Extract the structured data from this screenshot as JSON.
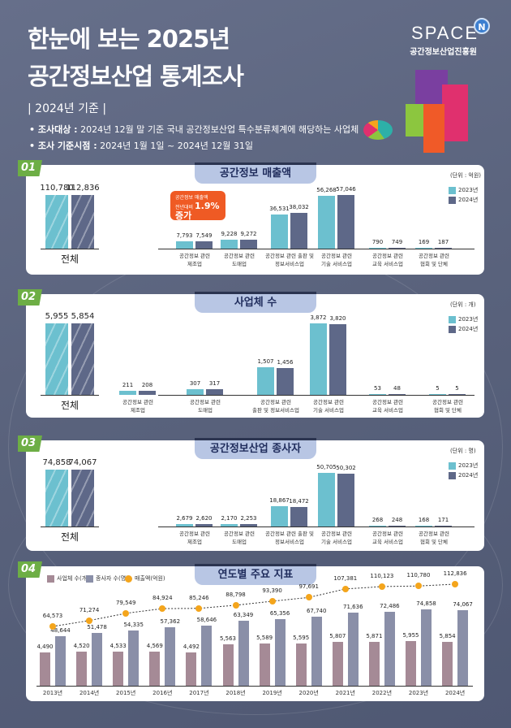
{
  "header": {
    "title_line1": "한눈에 보는 2025년",
    "title_line2": "공간정보산업 통계조사",
    "basis": "| 2024년 기준 |",
    "bullets": [
      {
        "label": "• 조사대상 :",
        "text": "2024년 12월 말 기준 국내 공간정보산업 특수분류체계에 해당하는 사업체"
      },
      {
        "label": "• 조사 기준시점 :",
        "text": "2024년 1월 1일 ~ 2024년 12월 31일"
      }
    ],
    "logo": "SPACE",
    "logo_badge": "N",
    "logo_org": "공간정보산업진흥원"
  },
  "colors": {
    "y2023": "#6cc0cf",
    "y2024": "#5e6888",
    "business": "#a58a96",
    "employees": "#8a8fa8",
    "sales": "#f4a51c",
    "badge": "#6dae45",
    "callout": "#ef5a24"
  },
  "legend": [
    "2023년",
    "2024년"
  ],
  "callout": {
    "line1": "공간정보 매출액",
    "line2": "전년대비",
    "highlight": "1.9% 증가"
  },
  "chart_data": [
    {
      "type": "bar",
      "num": "01",
      "title": "공간정보 매출액",
      "unit": "(단위 : 억원)",
      "total_label": "전체",
      "total_values": [
        "110,780",
        "112,836"
      ],
      "series": [
        {
          "name": "2023년"
        },
        {
          "name": "2024년"
        }
      ],
      "categories": [
        {
          "label": "공간정보 관련\n제조업",
          "values": [
            7793,
            7549
          ],
          "text": [
            "7,793",
            "7,549"
          ]
        },
        {
          "label": "공간정보 관련\n도매업",
          "values": [
            9228,
            9272
          ],
          "text": [
            "9,228",
            "9,272"
          ]
        },
        {
          "label": "공간정보 관련 출판 및\n정보서비스업",
          "values": [
            36531,
            38032
          ],
          "text": [
            "36,531",
            "38,032"
          ]
        },
        {
          "label": "공간정보 관련\n기술 서비스업",
          "values": [
            56268,
            57046
          ],
          "text": [
            "56,268",
            "57,046"
          ]
        },
        {
          "label": "공간정보 관련\n교육 서비스업",
          "values": [
            790,
            749
          ],
          "text": [
            "790",
            "749"
          ]
        },
        {
          "label": "공간정보 관련\n협회 및 단체",
          "values": [
            169,
            187
          ],
          "text": [
            "169",
            "187"
          ]
        }
      ]
    },
    {
      "type": "bar",
      "num": "02",
      "title": "사업체 수",
      "unit": "(단위 : 개)",
      "total_label": "전체",
      "total_values": [
        "5,955",
        "5,854"
      ],
      "series": [
        {
          "name": "2023년"
        },
        {
          "name": "2024년"
        }
      ],
      "categories": [
        {
          "label": "공간정보 관련\n제조업",
          "values": [
            211,
            208
          ],
          "text": [
            "211",
            "208"
          ]
        },
        {
          "label": "공간정보 관련\n도매업",
          "values": [
            307,
            317
          ],
          "text": [
            "307",
            "317"
          ]
        },
        {
          "label": "공간정보 관련\n출판 및 정보서비스업",
          "values": [
            1507,
            1456
          ],
          "text": [
            "1,507",
            "1,456"
          ]
        },
        {
          "label": "공간정보 관련\n기술 서비스업",
          "values": [
            3872,
            3820
          ],
          "text": [
            "3,872",
            "3,820"
          ]
        },
        {
          "label": "공간정보 관련\n교육 서비스업",
          "values": [
            53,
            48
          ],
          "text": [
            "53",
            "48"
          ]
        },
        {
          "label": "공간정보 관련\n협회 및 단체",
          "values": [
            5,
            5
          ],
          "text": [
            "5",
            "5"
          ]
        }
      ]
    },
    {
      "type": "bar",
      "num": "03",
      "title": "공간정보산업 종사자",
      "unit": "(단위 : 명)",
      "total_label": "전체",
      "total_values": [
        "74,858",
        "74,067"
      ],
      "series": [
        {
          "name": "2023년"
        },
        {
          "name": "2024년"
        }
      ],
      "categories": [
        {
          "label": "공간정보 관련\n제조업",
          "values": [
            2679,
            2620
          ],
          "text": [
            "2,679",
            "2,620"
          ]
        },
        {
          "label": "공간정보 관련\n도매업",
          "values": [
            2170,
            2253
          ],
          "text": [
            "2,170",
            "2,253"
          ]
        },
        {
          "label": "공간정보 관련 출판 및\n정보서비스업",
          "values": [
            18867,
            18472
          ],
          "text": [
            "18,867",
            "18,472"
          ]
        },
        {
          "label": "공간정보 관련\n기술 서비스업",
          "values": [
            50705,
            50302
          ],
          "text": [
            "50,705",
            "50,302"
          ]
        },
        {
          "label": "공간정보 관련\n교육 서비스업",
          "values": [
            268,
            248
          ],
          "text": [
            "268",
            "248"
          ]
        },
        {
          "label": "공간정보 관련\n협회 및 단체",
          "values": [
            168,
            171
          ],
          "text": [
            "168",
            "171"
          ]
        }
      ]
    },
    {
      "type": "bar+line",
      "num": "04",
      "title": "연도별 주요 지표",
      "legend": [
        "사업체 수(개)",
        "종사자 수(명)",
        "매출액(억원)"
      ],
      "years": [
        "2013년",
        "2014년",
        "2015년",
        "2016년",
        "2017년",
        "2018년",
        "2019년",
        "2020년",
        "2021년",
        "2022년",
        "2023년",
        "2024년"
      ],
      "business": [
        4490,
        4520,
        4533,
        4569,
        4492,
        5563,
        5589,
        5595,
        5807,
        5871,
        5955,
        5854
      ],
      "employees": [
        48644,
        51478,
        54335,
        57362,
        58646,
        63349,
        65356,
        67740,
        71636,
        72486,
        74858,
        74067
      ],
      "sales": [
        64573,
        71274,
        79549,
        84924,
        85246,
        88798,
        93390,
        97691,
        107381,
        110123,
        110780,
        112836
      ],
      "business_text": [
        "4,490",
        "4,520",
        "4,533",
        "4,569",
        "4,492",
        "5,563",
        "5,589",
        "5,595",
        "5,807",
        "5,871",
        "5,955",
        "5,854"
      ],
      "employees_text": [
        "48,644",
        "51,478",
        "54,335",
        "57,362",
        "58,646",
        "63,349",
        "65,356",
        "67,740",
        "71,636",
        "72,486",
        "74,858",
        "74,067"
      ],
      "sales_text": [
        "64,573",
        "71,274",
        "79,549",
        "84,924",
        "85,246",
        "88,798",
        "93,390",
        "97,691",
        "107,381",
        "110,123",
        "110,780",
        "112,836"
      ]
    }
  ]
}
